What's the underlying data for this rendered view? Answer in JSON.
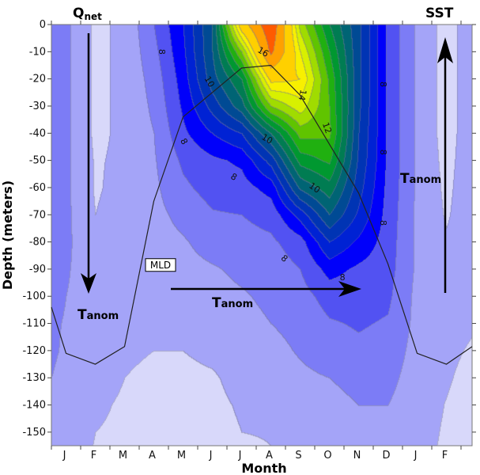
{
  "chart_data": {
    "type": "heatmap",
    "subtype": "filled-contour",
    "xlabel": "Month",
    "ylabel": "Depth (meters)",
    "x_tick_labels": [
      "J",
      "F",
      "M",
      "A",
      "M",
      "J",
      "J",
      "A",
      "S",
      "O",
      "N",
      "D",
      "J",
      "F"
    ],
    "ylim": [
      -155,
      0
    ],
    "xlim_months": [
      0,
      14.38
    ],
    "y_ticks": [
      0,
      -10,
      -20,
      -30,
      -40,
      -50,
      -60,
      -70,
      -80,
      -90,
      -100,
      -110,
      -120,
      -130,
      -140,
      -150
    ],
    "grid_x_months": [
      0,
      0.5,
      1.5,
      2.5,
      3.5,
      4.5,
      5.5,
      6.5,
      7.5,
      8.5,
      9.5,
      10.5,
      11.5,
      12.5,
      13.5,
      14.38
    ],
    "grid_depths": [
      0,
      -10,
      -20,
      -30,
      -40,
      -50,
      -60,
      -70,
      -80,
      -90,
      -100,
      -110,
      -120,
      -130,
      -140,
      -150,
      -155
    ],
    "values_by_month_column": [
      [
        7.3,
        7.3,
        7.3,
        7.3,
        7.3,
        7.3,
        7.3,
        7.3,
        7.3,
        7.2,
        7.2,
        7.1,
        7.1,
        7.0,
        6.9,
        6.8,
        6.8
      ],
      [
        7.1,
        7.1,
        7.1,
        7.1,
        7.1,
        7.1,
        7.1,
        7.1,
        7.1,
        7.05,
        7.0,
        6.95,
        6.9,
        6.8,
        6.75,
        6.7,
        6.7
      ],
      [
        6.4,
        6.4,
        6.4,
        6.4,
        6.4,
        6.45,
        6.45,
        6.5,
        6.6,
        6.7,
        6.75,
        6.8,
        6.8,
        6.75,
        6.6,
        6.5,
        6.48
      ],
      [
        6.6,
        6.6,
        6.6,
        6.6,
        6.6,
        6.6,
        6.65,
        6.7,
        6.7,
        6.7,
        6.7,
        6.65,
        6.58,
        6.5,
        6.42,
        6.4,
        6.4
      ],
      [
        7.5,
        7.35,
        7.2,
        7.1,
        7.0,
        6.95,
        6.9,
        6.85,
        6.8,
        6.75,
        6.7,
        6.6,
        6.5,
        6.4,
        6.35,
        6.3,
        6.3
      ],
      [
        8.5,
        8.4,
        8.25,
        8.1,
        7.9,
        7.6,
        7.4,
        7.15,
        6.95,
        6.85,
        6.75,
        6.6,
        6.5,
        6.4,
        6.35,
        6.3,
        6.3
      ],
      [
        10.0,
        10.0,
        9.8,
        9.2,
        8.5,
        7.9,
        7.7,
        7.45,
        7.2,
        6.95,
        6.85,
        6.75,
        6.6,
        6.45,
        6.4,
        6.35,
        6.3
      ],
      [
        14.5,
        12.5,
        11.0,
        10.3,
        9.0,
        8.1,
        7.8,
        7.5,
        7.3,
        7.1,
        6.95,
        6.85,
        6.75,
        6.65,
        6.55,
        6.5,
        6.45
      ],
      [
        16.8,
        16.2,
        14.2,
        12.5,
        10.5,
        9.2,
        8.2,
        7.7,
        7.4,
        7.2,
        7.1,
        7.0,
        6.85,
        6.7,
        6.6,
        6.52,
        6.5
      ],
      [
        12.8,
        13.5,
        14.0,
        13.3,
        12.2,
        11.2,
        10.1,
        8.7,
        7.8,
        7.5,
        7.3,
        7.15,
        7.05,
        6.9,
        6.75,
        6.65,
        6.6
      ],
      [
        11.0,
        11.5,
        11.9,
        12.0,
        12.1,
        11.6,
        10.8,
        10.0,
        9.0,
        8.2,
        7.7,
        7.45,
        7.25,
        7.0,
        6.9,
        6.85,
        6.8
      ],
      [
        9.6,
        9.6,
        9.6,
        9.6,
        9.5,
        9.4,
        9.2,
        8.9,
        8.4,
        7.9,
        7.7,
        7.55,
        7.4,
        7.1,
        7.0,
        6.95,
        6.9
      ],
      [
        7.9,
        7.9,
        7.9,
        7.9,
        7.9,
        7.9,
        7.85,
        7.8,
        7.75,
        7.7,
        7.6,
        7.45,
        7.3,
        7.15,
        7.0,
        6.95,
        6.9
      ],
      [
        6.9,
        6.9,
        6.9,
        6.9,
        6.9,
        6.9,
        6.9,
        6.9,
        6.9,
        6.9,
        6.85,
        6.85,
        6.8,
        6.75,
        6.7,
        6.65,
        6.6
      ],
      [
        6.3,
        6.3,
        6.3,
        6.3,
        6.3,
        6.35,
        6.4,
        6.45,
        6.55,
        6.6,
        6.65,
        6.65,
        6.6,
        6.55,
        6.48,
        6.45,
        6.45
      ],
      [
        6.8,
        6.8,
        6.8,
        6.8,
        6.8,
        6.8,
        6.8,
        6.8,
        6.75,
        6.7,
        6.65,
        6.55,
        6.45,
        6.35,
        6.3,
        6.3,
        6.3
      ]
    ],
    "contour_levels": [
      6.5,
      7,
      7.5,
      8,
      8.5,
      9,
      9.5,
      10,
      10.5,
      11,
      11.5,
      12,
      12.5,
      13,
      13.5,
      14,
      15,
      16
    ],
    "level_colors": [
      "#d8d8fa",
      "#a4a4f8",
      "#7c7cf6",
      "#5252f2",
      "#0000fa",
      "#0022d4",
      "#0034b4",
      "#004a94",
      "#006474",
      "#007c52",
      "#009830",
      "#20b010",
      "#60c400",
      "#a0dc00",
      "#d8f000",
      "#f8f000",
      "#ffd000",
      "#ffa000",
      "#ff5a00"
    ],
    "contour_labels": [
      {
        "text": "16",
        "month": 7.24,
        "depth": -10
      },
      {
        "text": "14",
        "month": 8.59,
        "depth": -26
      },
      {
        "text": "12",
        "month": 9.43,
        "depth": -38
      },
      {
        "text": "10",
        "month": 5.41,
        "depth": -21
      },
      {
        "text": "10",
        "month": 7.38,
        "depth": -42
      },
      {
        "text": "10",
        "month": 9.0,
        "depth": -60
      },
      {
        "text": "8",
        "month": 3.78,
        "depth": -10
      },
      {
        "text": "8",
        "month": 4.54,
        "depth": -43
      },
      {
        "text": "8",
        "month": 6.24,
        "depth": -56
      },
      {
        "text": "8",
        "month": 7.97,
        "depth": -86
      },
      {
        "text": "8",
        "month": 9.95,
        "depth": -93
      },
      {
        "text": "8",
        "month": 11.35,
        "depth": -22
      },
      {
        "text": "8",
        "month": 11.35,
        "depth": -47
      },
      {
        "text": "8",
        "month": 11.35,
        "depth": -73
      }
    ],
    "mld": {
      "label": "MLD",
      "label_month": 3.73,
      "label_depth": -88.5,
      "month": [
        0,
        0.5,
        1.5,
        2.5,
        3.5,
        4.5,
        6.5,
        7.5,
        8.5,
        9.5,
        10.5,
        11.5,
        12.5,
        13.5,
        14.38
      ],
      "depth": [
        -104,
        -121,
        -125,
        -118.5,
        -65,
        -34,
        -16,
        -15,
        -26,
        -44,
        -62,
        -88,
        -121,
        -125,
        -118.5
      ]
    },
    "annotations": {
      "qnet": {
        "main": "Q",
        "sub": "net"
      },
      "sst": "SST",
      "tanom_left": {
        "main": "T",
        "sub": "anom"
      },
      "tanom_middle": {
        "main": "T",
        "sub": "anom"
      },
      "tanom_right": {
        "main": "T",
        "sub": "anom"
      }
    }
  }
}
